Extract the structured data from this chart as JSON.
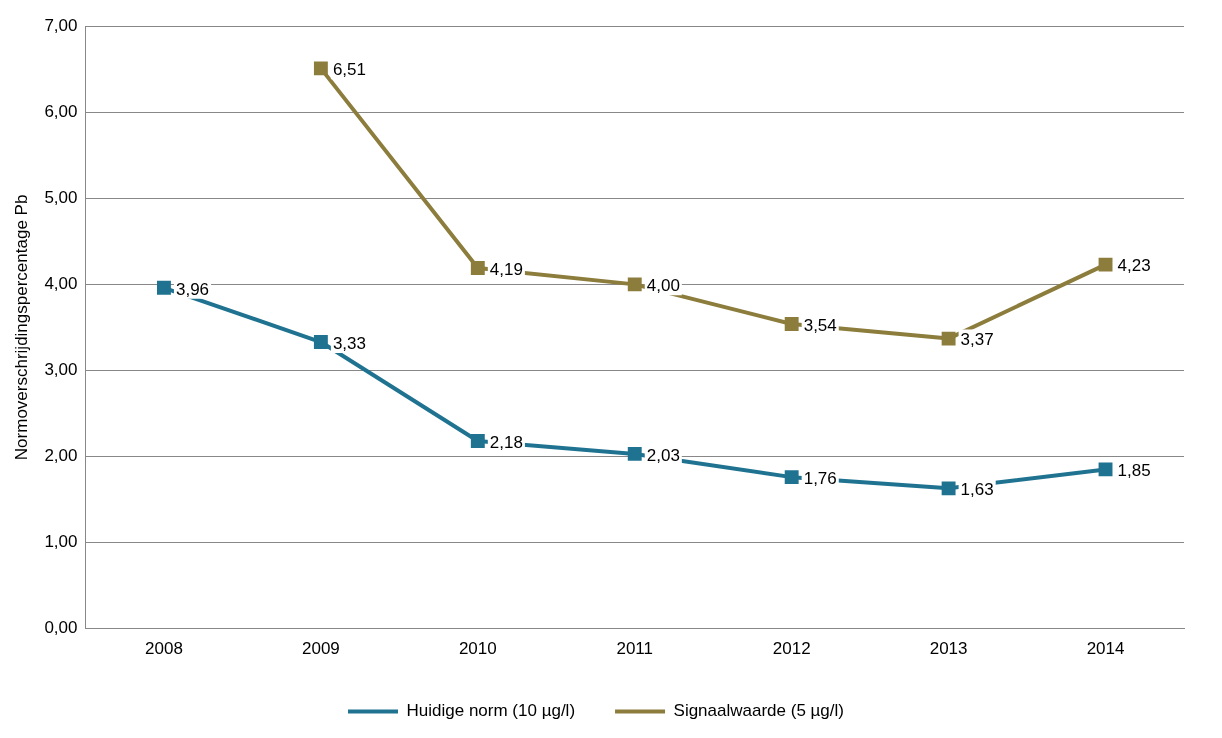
{
  "chart_data": {
    "type": "line",
    "ylabel": "Normoverschrijdingspercentage Pb",
    "categories": [
      "2008",
      "2009",
      "2010",
      "2011",
      "2012",
      "2013",
      "2014"
    ],
    "series": [
      {
        "name": "Huidige norm (10 µg/l)",
        "color": "#1f7391",
        "values": [
          3.96,
          3.33,
          2.18,
          2.03,
          1.76,
          1.63,
          1.85
        ],
        "value_labels": [
          "3,96",
          "3,33",
          "2,18",
          "2,03",
          "1,76",
          "1,63",
          "1,85"
        ]
      },
      {
        "name": "Signaalwaarde (5 µg/l)",
        "color": "#8c7d3c",
        "values": [
          null,
          6.51,
          4.19,
          4.0,
          3.54,
          3.37,
          4.23
        ],
        "value_labels": [
          null,
          "6,51",
          "4,19",
          "4,00",
          "3,54",
          "3,37",
          "4,23"
        ]
      }
    ],
    "ylim": [
      0,
      7
    ],
    "yticks": [
      {
        "value": 0,
        "label": "0,00"
      },
      {
        "value": 1,
        "label": "1,00"
      },
      {
        "value": 2,
        "label": "2,00"
      },
      {
        "value": 3,
        "label": "3,00"
      },
      {
        "value": 4,
        "label": "4,00"
      },
      {
        "value": 5,
        "label": "5,00"
      },
      {
        "value": 6,
        "label": "6,00"
      },
      {
        "value": 7,
        "label": "7,00"
      }
    ],
    "grid": "y",
    "legend": "bottom",
    "marker": "square",
    "line_style": "solid"
  }
}
